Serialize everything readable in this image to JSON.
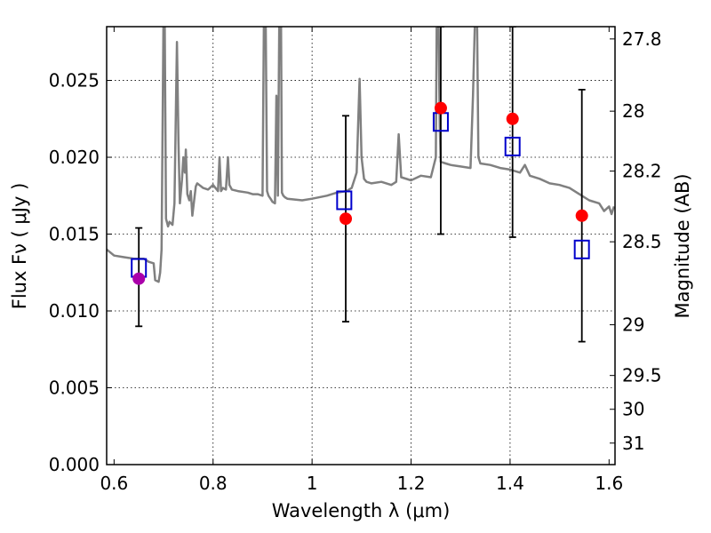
{
  "chart_data": {
    "type": "scatter",
    "xlabel": "Wavelength  λ (μm)",
    "ylabel": "Flux  Fν  ( μJy )",
    "y2label": "Magnitude (AB)",
    "xlim": [
      0.585,
      1.612
    ],
    "ylim": [
      0.0,
      0.0285
    ],
    "grid": true,
    "x_ticks": [
      0.6,
      0.8,
      1.0,
      1.2,
      1.4,
      1.6
    ],
    "x_tick_labels": [
      "0.6",
      "0.8",
      "1",
      "1.2",
      "1.4",
      "1.6"
    ],
    "y_ticks": [
      0.0,
      0.005,
      0.01,
      0.015,
      0.02,
      0.025
    ],
    "y_tick_labels": [
      "0.000",
      "0.005",
      "0.010",
      "0.015",
      "0.020",
      "0.025"
    ],
    "mag_ticks": [
      {
        "label": "27.8",
        "flux": 0.0277
      },
      {
        "label": "28",
        "flux": 0.023
      },
      {
        "label": "28.2",
        "flux": 0.0191
      },
      {
        "label": "28.5",
        "flux": 0.0145
      },
      {
        "label": "29",
        "flux": 0.0091
      },
      {
        "label": "29.5",
        "flux": 0.0058
      },
      {
        "label": "30",
        "flux": 0.0036
      },
      {
        "label": "31",
        "flux": 0.0014
      }
    ],
    "series": [
      {
        "kind": "observed-points",
        "x": [
          0.65,
          1.068,
          1.26,
          1.405,
          1.545
        ],
        "y": [
          0.0121,
          0.016,
          0.0232,
          0.0225,
          0.0162
        ],
        "yerr_low": [
          0.009,
          0.0093,
          0.015,
          0.0148,
          0.008
        ],
        "yerr_high": [
          0.0154,
          0.0227,
          0.0285,
          0.0285,
          0.0244
        ],
        "colors": [
          "#aa00aa",
          "#ff0000",
          "#ff0000",
          "#ff0000",
          "#ff0000"
        ]
      },
      {
        "kind": "model-photometry",
        "x": [
          0.65,
          1.065,
          1.26,
          1.405,
          1.545
        ],
        "y": [
          0.0128,
          0.0172,
          0.0223,
          0.0207,
          0.014
        ],
        "color": "#0000cc"
      },
      {
        "kind": "model-spectrum",
        "color": "#808080",
        "x": [
          0.585,
          0.6,
          0.62,
          0.64,
          0.66,
          0.67,
          0.68,
          0.683,
          0.69,
          0.693,
          0.696,
          0.7,
          0.702,
          0.705,
          0.709,
          0.712,
          0.718,
          0.722,
          0.727,
          0.73,
          0.733,
          0.737,
          0.74,
          0.743,
          0.745,
          0.748,
          0.752,
          0.755,
          0.758,
          0.765,
          0.768,
          0.772,
          0.776,
          0.78,
          0.79,
          0.8,
          0.81,
          0.813,
          0.816,
          0.82,
          0.826,
          0.83,
          0.833,
          0.838,
          0.85,
          0.87,
          0.88,
          0.89,
          0.9,
          0.903,
          0.906,
          0.909,
          0.912,
          0.916,
          0.92,
          0.925,
          0.928,
          0.931,
          0.934,
          0.937,
          0.939,
          0.942,
          0.945,
          0.95,
          0.98,
          1.0,
          1.03,
          1.05,
          1.07,
          1.08,
          1.085,
          1.09,
          1.093,
          1.096,
          1.1,
          1.105,
          1.11,
          1.12,
          1.14,
          1.16,
          1.17,
          1.175,
          1.18,
          1.2,
          1.22,
          1.24,
          1.25,
          1.252,
          1.255,
          1.258,
          1.26,
          1.27,
          1.28,
          1.3,
          1.32,
          1.325,
          1.33,
          1.333,
          1.336,
          1.34,
          1.36,
          1.38,
          1.4,
          1.42,
          1.43,
          1.44,
          1.46,
          1.48,
          1.5,
          1.52,
          1.54,
          1.56,
          1.58,
          1.59,
          1.6,
          1.605,
          1.61
        ],
        "y": [
          0.014,
          0.0136,
          0.0135,
          0.0134,
          0.0134,
          0.0132,
          0.0131,
          0.012,
          0.0119,
          0.0125,
          0.014,
          0.03,
          0.03,
          0.016,
          0.0155,
          0.0158,
          0.0156,
          0.017,
          0.0275,
          0.021,
          0.017,
          0.0185,
          0.02,
          0.019,
          0.0205,
          0.0176,
          0.0172,
          0.0178,
          0.0162,
          0.0181,
          0.0183,
          0.0182,
          0.0181,
          0.018,
          0.0179,
          0.0182,
          0.0178,
          0.02,
          0.0178,
          0.018,
          0.0179,
          0.02,
          0.0182,
          0.0179,
          0.0178,
          0.0177,
          0.0176,
          0.0176,
          0.0175,
          0.03,
          0.03,
          0.0178,
          0.0175,
          0.0173,
          0.0171,
          0.017,
          0.024,
          0.0175,
          0.03,
          0.03,
          0.0177,
          0.0175,
          0.0174,
          0.0173,
          0.0172,
          0.0173,
          0.0175,
          0.0177,
          0.0178,
          0.018,
          0.0185,
          0.019,
          0.022,
          0.0251,
          0.02,
          0.0186,
          0.0184,
          0.0183,
          0.0184,
          0.0182,
          0.0184,
          0.0215,
          0.0187,
          0.0185,
          0.0188,
          0.0187,
          0.02,
          0.03,
          0.03,
          0.022,
          0.0197,
          0.0196,
          0.0195,
          0.0194,
          0.0193,
          0.024,
          0.03,
          0.03,
          0.02,
          0.0196,
          0.0195,
          0.0193,
          0.0192,
          0.019,
          0.0195,
          0.0188,
          0.0186,
          0.0183,
          0.0182,
          0.018,
          0.0176,
          0.0172,
          0.017,
          0.0165,
          0.0168,
          0.0163,
          0.0168
        ]
      }
    ]
  }
}
